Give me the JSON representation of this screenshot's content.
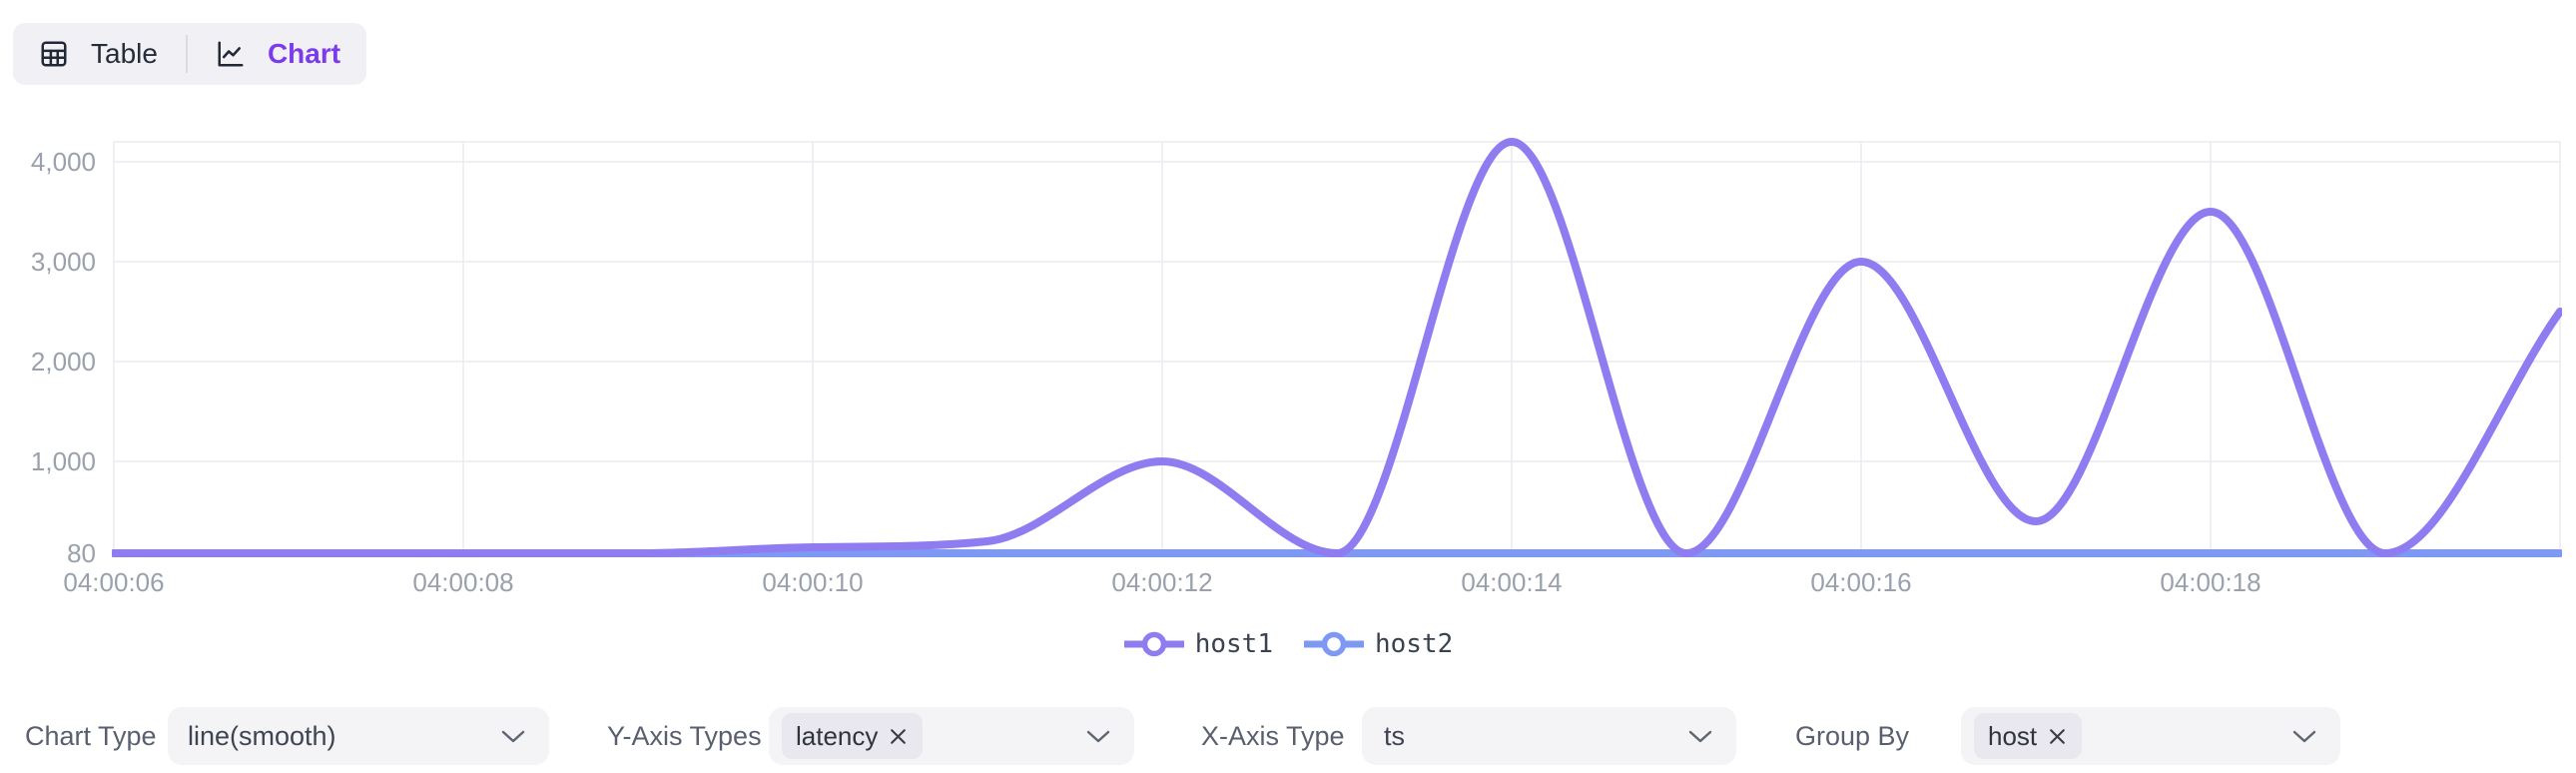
{
  "view_toggle": {
    "table_label": "Table",
    "chart_label": "Chart",
    "active_view": "Chart"
  },
  "chart_data": {
    "type": "line",
    "smooth": true,
    "x": [
      "04:00:06",
      "04:00:07",
      "04:00:08",
      "04:00:09",
      "04:00:10",
      "04:00:11",
      "04:00:12",
      "04:00:13",
      "04:00:14",
      "04:00:15",
      "04:00:16",
      "04:00:17",
      "04:00:18",
      "04:00:19",
      "04:00:20"
    ],
    "x_seconds": [
      6,
      7,
      8,
      9,
      10,
      11,
      12,
      13,
      14,
      15,
      16,
      17,
      18,
      19,
      20
    ],
    "x_tick_seconds": [
      6,
      8,
      10,
      12,
      14,
      16,
      18
    ],
    "x_tick_labels": [
      "04:00:06",
      "04:00:08",
      "04:00:10",
      "04:00:12",
      "04:00:14",
      "04:00:16",
      "04:00:18"
    ],
    "y_ticks": [
      80,
      1000,
      2000,
      3000,
      4000
    ],
    "y_tick_labels": [
      "80",
      "1,000",
      "2,000",
      "3,000",
      "4,000"
    ],
    "ylim": [
      80,
      4200
    ],
    "series": [
      {
        "name": "host1",
        "color": "#8f7cf0",
        "values": [
          80,
          80,
          80,
          80,
          140,
          200,
          1000,
          80,
          4200,
          80,
          3000,
          400,
          3500,
          80,
          2500
        ]
      },
      {
        "name": "host2",
        "color": "#7e99f3",
        "values": [
          80,
          80,
          80,
          80,
          80,
          80,
          80,
          80,
          80,
          80,
          80,
          80,
          80,
          80,
          80
        ]
      }
    ],
    "legend_position": "bottom",
    "grid": true
  },
  "controls": {
    "chart_type": {
      "label": "Chart Type",
      "value": "line(smooth)"
    },
    "y_axis_types": {
      "label": "Y-Axis Types",
      "selected_tags": [
        "latency"
      ]
    },
    "x_axis_type": {
      "label": "X-Axis Type",
      "value": "ts"
    },
    "group_by": {
      "label": "Group By",
      "selected_tags": [
        "host"
      ]
    }
  },
  "colors": {
    "accent": "#7c3aed",
    "host1": "#8f7cf0",
    "host2": "#7e99f3",
    "axis_text": "#9aa1ac",
    "grid_line": "#ececf1",
    "axis_line": "#dcdde3",
    "toggle_bg": "#f1f1f5",
    "dropdown_bg": "#f4f4f7",
    "tag_bg": "#e9e8ee"
  }
}
